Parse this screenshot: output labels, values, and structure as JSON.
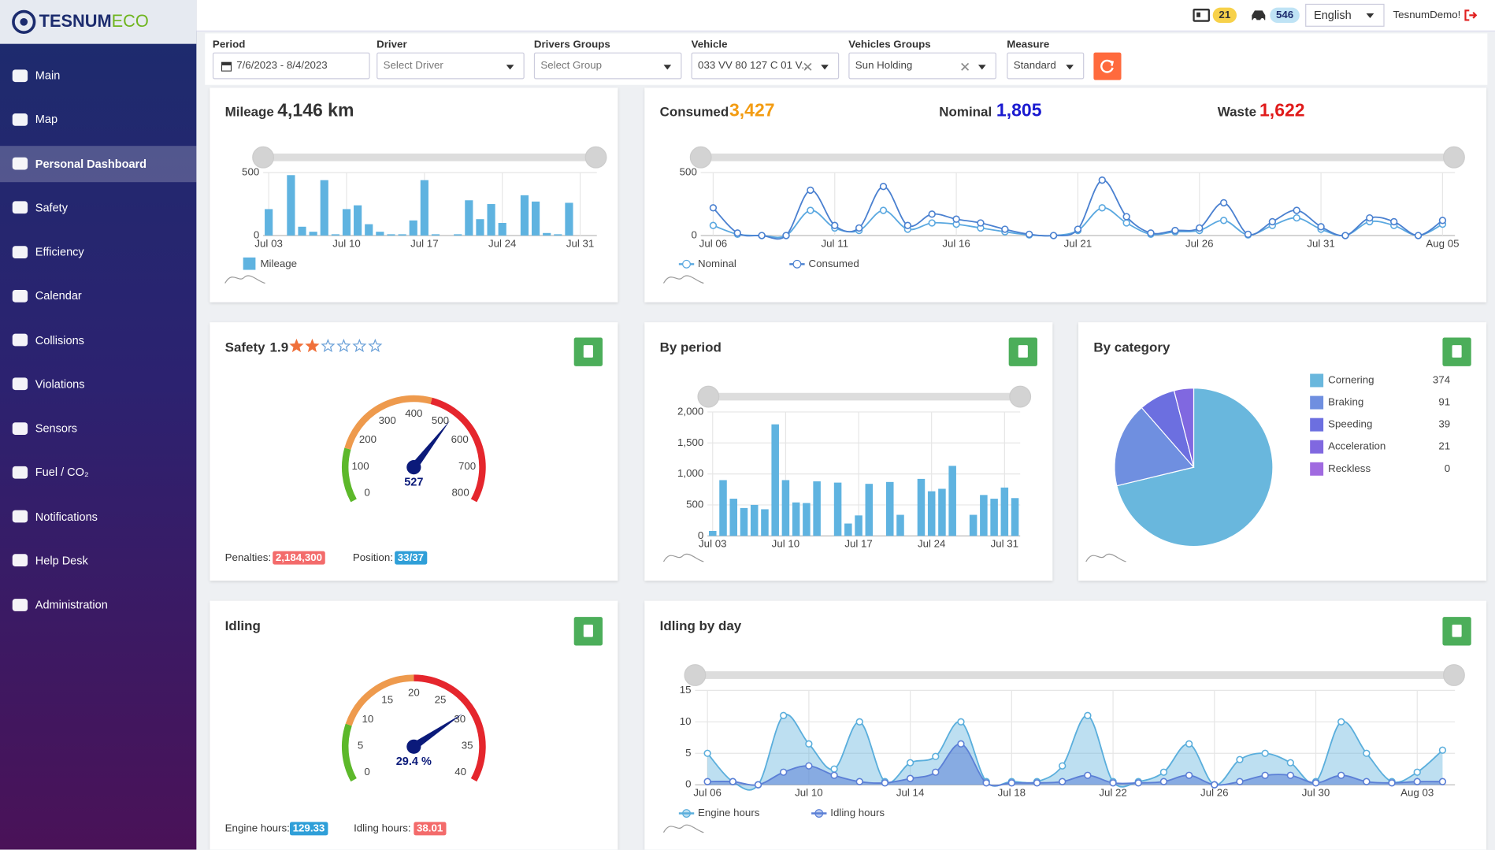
{
  "header": {
    "logo_main": "TESNUM",
    "logo_accent": "ECO",
    "badge_cards": 21,
    "badge_vehicles": 546,
    "language": "English",
    "user": "TesnumDemo!"
  },
  "sidebar": {
    "active": 2,
    "items": [
      "Main",
      "Map",
      "Personal Dashboard",
      "Safety",
      "Efficiency",
      "Calendar",
      "Collisions",
      "Violations",
      "Sensors",
      "Fuel / CO₂",
      "Notifications",
      "Help Desk",
      "Administration"
    ]
  },
  "filters": [
    {
      "label": "Period",
      "value": "7/6/2023 - 8/4/2023"
    },
    {
      "label": "Driver",
      "value": "Select Driver"
    },
    {
      "label": "Drivers Groups",
      "value": "Select Group"
    },
    {
      "label": "Vehicle",
      "value": "033 VV 80 127 C 01 V..."
    },
    {
      "label": "Vehicles Groups",
      "value": "Sun Holding"
    },
    {
      "label": "Measure",
      "value": "Standard"
    }
  ],
  "mileage": {
    "title": "Mileage",
    "total": "4,146 km",
    "chart": {
      "type": "bar",
      "categories": [
        "Jul 03",
        null,
        null,
        null,
        null,
        null,
        null,
        "Jul 10",
        null,
        null,
        null,
        null,
        null,
        null,
        "Jul 17",
        null,
        null,
        null,
        null,
        null,
        null,
        "Jul 24",
        null,
        null,
        null,
        null,
        null,
        null,
        "Jul 31",
        null
      ],
      "series": [
        {
          "name": "Mileage",
          "color": "#5fb3e0",
          "values": [
            210,
            0,
            480,
            70,
            30,
            440,
            10,
            210,
            240,
            90,
            30,
            10,
            10,
            120,
            440,
            10,
            0,
            10,
            280,
            130,
            250,
            100,
            0,
            320,
            270,
            20,
            10,
            260,
            0,
            0
          ]
        }
      ],
      "ylim": [
        0,
        500
      ],
      "yticks": [
        0,
        500
      ],
      "grid": true
    }
  },
  "consumption": {
    "consumed_label": "Consumed",
    "consumed": "3,427",
    "nominal_label": "Nominal",
    "nominal": "1,805",
    "waste_label": "Waste",
    "waste": "1,622",
    "chart": {
      "type": "line",
      "categories": [
        "Jul 06",
        null,
        null,
        null,
        null,
        "Jul 11",
        null,
        null,
        null,
        null,
        "Jul 16",
        null,
        null,
        null,
        null,
        "Jul 21",
        null,
        null,
        null,
        null,
        "Jul 26",
        null,
        null,
        null,
        null,
        "Jul 31",
        null,
        null,
        null,
        null,
        "Aug 05"
      ],
      "series": [
        {
          "name": "Nominal",
          "color": "#5aa8e0",
          "values": [
            80,
            10,
            0,
            0,
            200,
            60,
            40,
            200,
            50,
            100,
            90,
            60,
            30,
            5,
            0,
            40,
            220,
            100,
            10,
            30,
            40,
            120,
            5,
            80,
            140,
            50,
            0,
            110,
            80,
            0,
            90
          ]
        },
        {
          "name": "Consumed",
          "color": "#4a80d0",
          "values": [
            220,
            20,
            0,
            0,
            360,
            80,
            60,
            390,
            80,
            170,
            130,
            100,
            50,
            10,
            0,
            50,
            440,
            150,
            20,
            40,
            60,
            260,
            10,
            110,
            200,
            70,
            0,
            140,
            110,
            0,
            120
          ]
        }
      ],
      "ylim": [
        0,
        500
      ],
      "yticks": [
        0,
        500
      ],
      "grid": true
    }
  },
  "safety": {
    "title": "Safety",
    "rating": "1.9",
    "penalties_label": "Penalties:",
    "penalties": "2,184,300",
    "position_label": "Position:",
    "position": "33/37",
    "gauge": {
      "type": "gauge",
      "value": 527,
      "lim": [
        0,
        800
      ],
      "ticks": [
        0,
        100,
        200,
        300,
        400,
        500,
        600,
        700,
        800
      ],
      "bands": [
        {
          "from": 0,
          "to": 150,
          "color": "#5cb82a"
        },
        {
          "from": 150,
          "to": 450,
          "color": "#ee9a4d"
        },
        {
          "from": 450,
          "to": 800,
          "color": "#e5262d"
        }
      ]
    }
  },
  "by_period": {
    "title": "By period",
    "chart": {
      "type": "bar",
      "categories": [
        "Jul 03",
        null,
        null,
        null,
        null,
        null,
        null,
        "Jul 10",
        null,
        null,
        null,
        null,
        null,
        null,
        "Jul 17",
        null,
        null,
        null,
        null,
        null,
        null,
        "Jul 24",
        null,
        null,
        null,
        null,
        null,
        null,
        "Jul 31",
        null
      ],
      "values": [
        80,
        900,
        600,
        450,
        500,
        430,
        1800,
        900,
        540,
        530,
        880,
        0,
        860,
        200,
        330,
        840,
        0,
        870,
        340,
        0,
        920,
        720,
        760,
        1130,
        0,
        340,
        660,
        600,
        780,
        610
      ],
      "color": "#5fb3e0",
      "ylim": [
        0,
        2000
      ],
      "yticks": [
        0,
        500,
        {
          "value": 1000,
          "label": "1,000"
        },
        {
          "value": 1500,
          "label": "1,500"
        },
        {
          "value": 2000,
          "label": "2,000"
        }
      ],
      "grid": true
    }
  },
  "by_category": {
    "title": "By category",
    "chart": {
      "type": "pie",
      "categories": [
        "Cornering",
        "Braking",
        "Speeding",
        "Acceleration",
        "Reckless"
      ],
      "values": [
        374,
        91,
        39,
        21,
        0
      ],
      "colors": [
        "#69b7dd",
        "#6f8fe0",
        "#6c6fe0",
        "#8068e0",
        "#a06ae0"
      ]
    }
  },
  "idling": {
    "title": "Idling",
    "engine_label": "Engine hours:",
    "engine_hours": 129.33,
    "idling_label": "Idling hours:",
    "idling_hours": 38.01,
    "gauge": {
      "type": "gauge",
      "value": 29.4,
      "value_label": "29.4 %",
      "lim": [
        0,
        40
      ],
      "ticks": [
        0,
        5,
        10,
        15,
        20,
        25,
        30,
        35,
        40
      ],
      "bands": [
        {
          "from": 0,
          "to": 8,
          "color": "#5cb82a"
        },
        {
          "from": 8,
          "to": 20,
          "color": "#ee9a4d"
        },
        {
          "from": 20,
          "to": 40,
          "color": "#e5262d"
        }
      ]
    }
  },
  "idling_by_day": {
    "title": "Idling by day",
    "chart": {
      "type": "area",
      "categories": [
        "Jul 06",
        null,
        null,
        null,
        "Jul 10",
        null,
        null,
        null,
        "Jul 14",
        null,
        null,
        null,
        "Jul 18",
        null,
        null,
        null,
        "Jul 22",
        null,
        null,
        null,
        "Jul 26",
        null,
        null,
        null,
        "Jul 30",
        null,
        null,
        null,
        "Aug 03",
        null
      ],
      "series": [
        {
          "name": "Engine hours",
          "color": "#5aaedc",
          "values": [
            5,
            0.5,
            0,
            11,
            6.5,
            2.5,
            10,
            0.5,
            3.5,
            4.5,
            10,
            0.5,
            0.5,
            0.5,
            3,
            11,
            0.5,
            0.5,
            2,
            6.5,
            0,
            4,
            5,
            3.5,
            0.5,
            10,
            5,
            0.5,
            2,
            5.5
          ]
        },
        {
          "name": "Idling hours",
          "color": "#5b7fd6",
          "values": [
            0.5,
            0.5,
            0,
            2,
            3,
            1.5,
            0.5,
            0.3,
            1,
            2,
            6.5,
            0.3,
            0.3,
            0.3,
            0.5,
            1.5,
            0.3,
            0.3,
            0.5,
            1.5,
            0,
            0.5,
            1.5,
            1.5,
            0.3,
            1.5,
            0.5,
            0.3,
            0.5,
            0.5
          ]
        }
      ],
      "ylim": [
        0,
        15
      ],
      "yticks": [
        0,
        5,
        10,
        15
      ],
      "grid": true
    }
  }
}
